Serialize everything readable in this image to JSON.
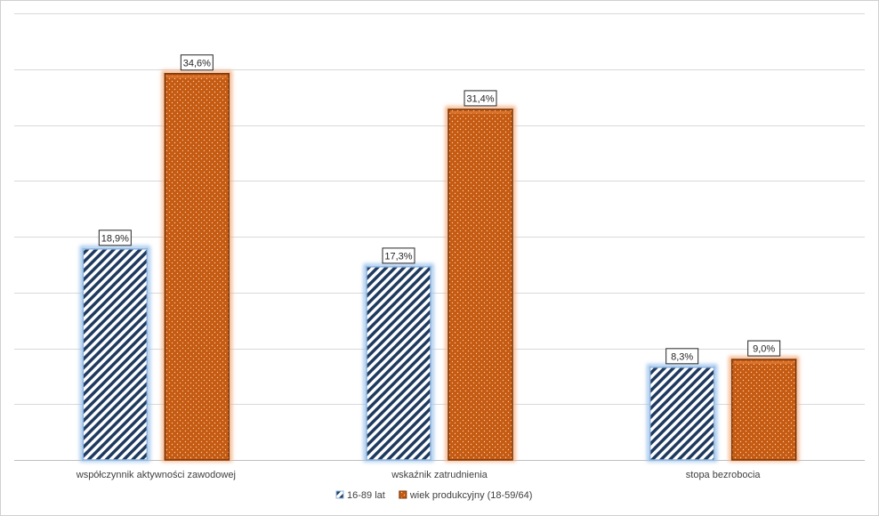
{
  "chart_data": {
    "type": "bar",
    "categories": [
      "współczynnik aktywności zawodowej",
      "wskaźnik zatrudnienia",
      "stopa bezrobocia"
    ],
    "series": [
      {
        "name": "16-89 lat",
        "values": [
          18.9,
          17.3,
          8.3
        ],
        "labels": [
          "18,9%",
          "17,3%",
          "8,3%"
        ],
        "color": "#1f3a5f",
        "glow": "#9cc3ec"
      },
      {
        "name": "wiek produkcyjny (18-59/64)",
        "values": [
          34.6,
          31.4,
          9.0
        ],
        "labels": [
          "34,6%",
          "31,4%",
          "9,0%"
        ],
        "color": "#c55a11",
        "glow": "#f4b183"
      }
    ],
    "ylim": [
      0,
      40
    ],
    "grid": true,
    "legend_position": "bottom"
  }
}
